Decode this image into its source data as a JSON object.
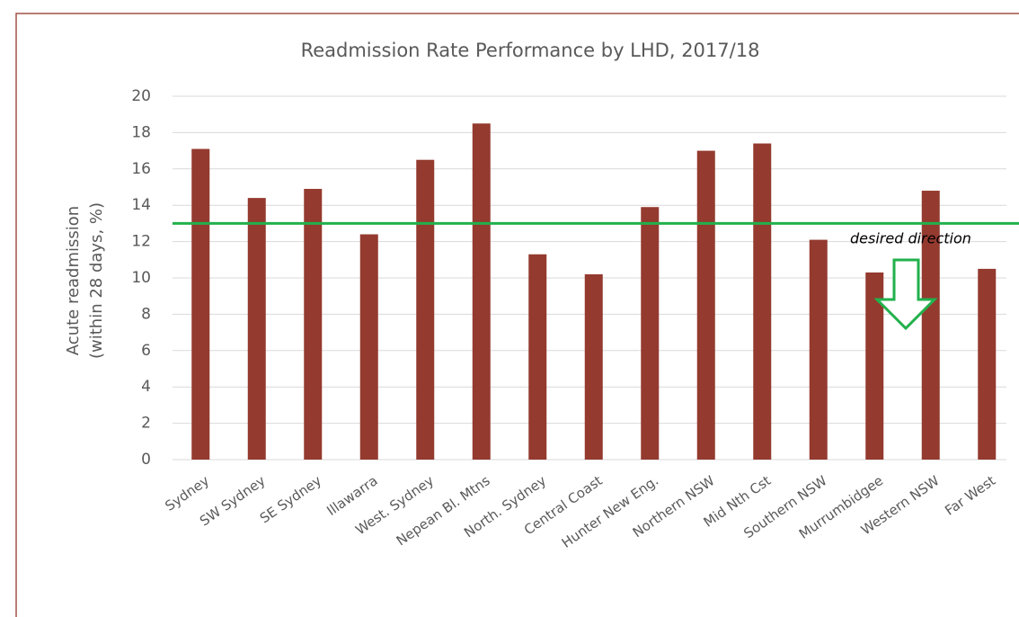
{
  "chart_data": {
    "type": "bar",
    "title": "Readmission Rate Performance by LHD, 2017/18",
    "ylabel": [
      "Acute readmission",
      "(within 28 days, %)"
    ],
    "categories": [
      "Sydney",
      "SW Sydney",
      "SE Sydney",
      "Illawarra",
      "West. Sydney",
      "Nepean Bl. Mtns",
      "North. Sydney",
      "Central Coast",
      "Hunter New Eng.",
      "Northern NSW",
      "Mid Nth Cst",
      "Southern NSW",
      "Murrumbidgee",
      "Western NSW",
      "Far West"
    ],
    "values": [
      17.1,
      14.4,
      14.9,
      12.4,
      16.5,
      18.5,
      11.3,
      10.2,
      13.9,
      17.0,
      17.4,
      12.1,
      10.3,
      14.8,
      10.5
    ],
    "color": "#943a2f",
    "ylim": [
      0,
      20
    ],
    "yticks": [
      0,
      2,
      4,
      6,
      8,
      10,
      12,
      14,
      16,
      18,
      20
    ],
    "grid": true,
    "reference_line": {
      "value": 13,
      "color": "#22b14c"
    },
    "annotation": "desired direction"
  }
}
